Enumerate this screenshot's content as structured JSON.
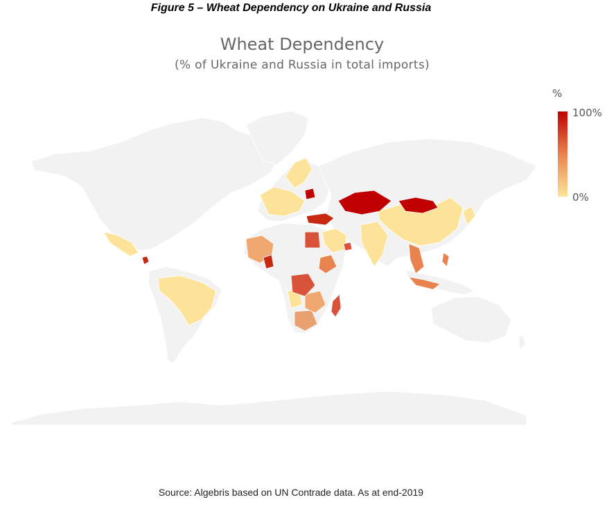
{
  "figure_caption": "Figure 5 – Wheat Dependency on Ukraine and Russia",
  "map": {
    "title": "Wheat Dependency",
    "subtitle": "(% of Ukraine and Russia in total imports)",
    "background_color": "#f2f2f2",
    "legend": {
      "title": "%",
      "max_label": "100%",
      "min_label": "0%",
      "color_high": "#c00000",
      "color_mid": "#e8834f",
      "color_low": "#fde39a"
    }
  },
  "source": "Source: Algebris based on UN Contrade data. As at end-2019"
}
